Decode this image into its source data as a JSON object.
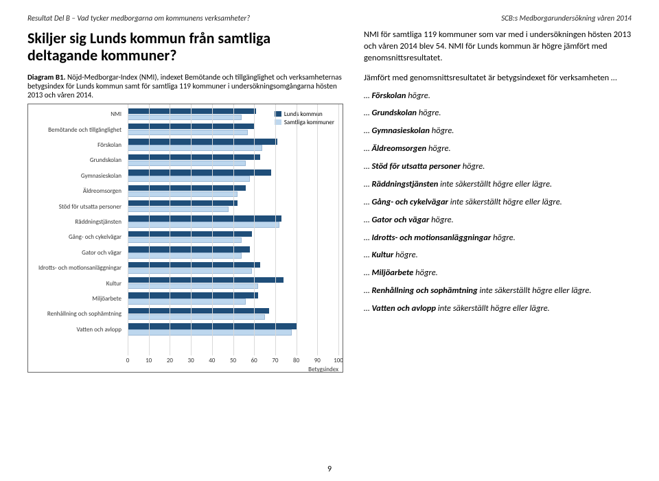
{
  "header": {
    "left": "Resultat Del B – Vad tycker medborgarna om kommunens verksamheter?",
    "right": "SCB:s Medborgarundersökning våren 2014"
  },
  "left": {
    "title": "Skiljer sig Lunds kommun från samtliga deltagande kommuner?",
    "caption_lead": "Diagram B1.",
    "caption_rest": " Nöjd-Medborgar-Index (NMI), indexet Bemötande och tillgänglighet och verksamheternas betygsindex för Lunds kommun samt för samtliga 119 kommuner i undersökningsomgångarna hösten 2013 och våren 2014.",
    "chart": {
      "type": "bar",
      "categories": [
        "NMI",
        "Bemötande och tillgänglighet",
        "Förskolan",
        "Grundskolan",
        "Gymnasieskolan",
        "Äldreomsorgen",
        "Stöd för utsatta personer",
        "Räddningstjänsten",
        "Gång- och cykelvägar",
        "Gator och vägar",
        "Idrotts- och motionsanläggningar",
        "Kultur",
        "Miljöarbete",
        "Renhållning och sophämtning",
        "Vatten och avlopp"
      ],
      "series": [
        {
          "label": "Lunds kommun",
          "color": "#1f4e79",
          "values": [
            61,
            60,
            71,
            63,
            68,
            56,
            52,
            73,
            59,
            58,
            63,
            74,
            62,
            67,
            80
          ]
        },
        {
          "label": "Samtliga kommuner",
          "color": "#bdd7ee",
          "values": [
            54,
            57,
            64,
            56,
            58,
            52,
            48,
            72,
            54,
            54,
            59,
            62,
            56,
            65,
            78
          ]
        }
      ],
      "xlim": [
        0,
        100
      ],
      "xticks": [
        0,
        10,
        20,
        30,
        40,
        50,
        60,
        70,
        80,
        90,
        100
      ],
      "xaxis_title": "Betygsindex",
      "grid_color": "#d9d9d9",
      "background_color": "#ffffff",
      "border_color": "#666666",
      "label_fontsize": 9
    }
  },
  "right": {
    "intro1": "NMI för samtliga 119 kommuner som var med i undersökningen hösten 2013 och våren 2014 blev 54. NMI för Lunds kommun är högre jämfört med genomsnittsresultatet.",
    "intro2": "Jämfört med genomsnittsresultatet är betygsindexet för verksamheten …",
    "items": [
      {
        "pre": "…",
        "b": " Förskolan",
        "post": " högre."
      },
      {
        "pre": "…",
        "b": " Grundskolan",
        "post": " högre."
      },
      {
        "pre": "…",
        "b": " Gymnasieskolan",
        "post": " högre."
      },
      {
        "pre": "…",
        "b": " Äldreomsorgen",
        "post": " högre."
      },
      {
        "pre": "…",
        "b": " Stöd för utsatta personer",
        "post": " högre."
      },
      {
        "pre": "…",
        "b": " Räddningstjänsten",
        "post": " inte säkerställt högre eller lägre."
      },
      {
        "pre": "…",
        "b": " Gång- och cykelvägar",
        "post": " inte säkerställt högre eller lägre."
      },
      {
        "pre": "…",
        "b": " Gator och vägar",
        "post": " högre."
      },
      {
        "pre": "…",
        "b": " Idrotts- och motionsanläggningar",
        "post": " högre."
      },
      {
        "pre": "…",
        "b": " Kultur",
        "post": " högre."
      },
      {
        "pre": "…",
        "b": " Miljöarbete",
        "post": " högre."
      },
      {
        "pre": "…",
        "b": " Renhållning och sophämtning",
        "post": " inte säkerställt högre eller lägre."
      },
      {
        "pre": "…",
        "b": " Vatten och avlopp",
        "post": " inte säkerställt högre eller lägre."
      }
    ]
  },
  "page_number": "9"
}
